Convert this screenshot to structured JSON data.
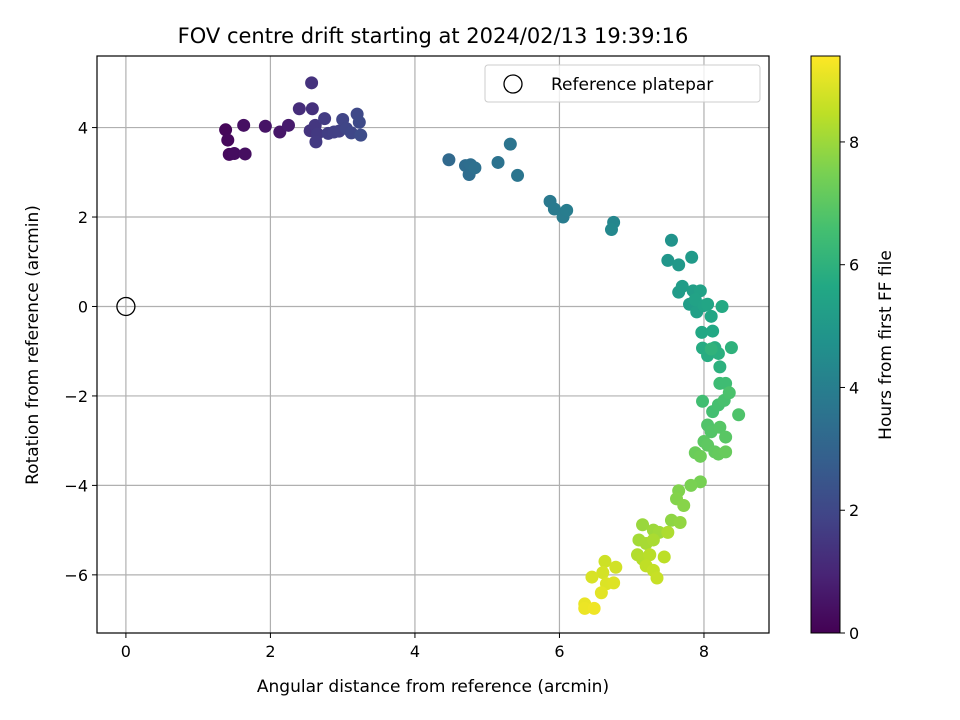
{
  "chart_data": {
    "type": "scatter",
    "title": "FOV centre drift starting at 2024/02/13 19:39:16",
    "xlabel": "Angular distance from reference (arcmin)",
    "ylabel": "Rotation from reference (arcmin)",
    "colorbar_label": "Hours from first FF file",
    "xlim": [
      -0.4,
      8.9
    ],
    "ylim": [
      -7.3,
      5.6
    ],
    "clim": [
      0,
      9.4
    ],
    "colormap": "viridis",
    "x_ticks": [
      0,
      2,
      4,
      6,
      8
    ],
    "y_ticks": [
      -6,
      -4,
      -2,
      0,
      2,
      4
    ],
    "colorbar_ticks": [
      0,
      2,
      4,
      6,
      8
    ],
    "grid": true,
    "legend": {
      "label": "Reference platepar",
      "position": "top-right"
    },
    "reference": {
      "x": 0,
      "y": 0
    },
    "points": [
      {
        "x": 1.38,
        "y": 3.95,
        "t": 0.15
      },
      {
        "x": 1.41,
        "y": 3.72,
        "t": 0.2
      },
      {
        "x": 1.43,
        "y": 3.4,
        "t": 0.25
      },
      {
        "x": 1.5,
        "y": 3.42,
        "t": 0.3
      },
      {
        "x": 1.65,
        "y": 3.41,
        "t": 0.35
      },
      {
        "x": 1.63,
        "y": 4.05,
        "t": 0.4
      },
      {
        "x": 1.93,
        "y": 4.03,
        "t": 0.5
      },
      {
        "x": 2.13,
        "y": 3.9,
        "t": 0.6
      },
      {
        "x": 2.25,
        "y": 4.05,
        "t": 0.7
      },
      {
        "x": 2.4,
        "y": 4.42,
        "t": 1.2
      },
      {
        "x": 2.58,
        "y": 4.42,
        "t": 1.3
      },
      {
        "x": 2.57,
        "y": 5.0,
        "t": 1.35
      },
      {
        "x": 2.55,
        "y": 3.93,
        "t": 1.4
      },
      {
        "x": 2.62,
        "y": 4.05,
        "t": 1.5
      },
      {
        "x": 2.65,
        "y": 3.86,
        "t": 1.55
      },
      {
        "x": 2.63,
        "y": 3.68,
        "t": 1.6
      },
      {
        "x": 2.75,
        "y": 4.2,
        "t": 1.65
      },
      {
        "x": 2.8,
        "y": 3.87,
        "t": 1.7
      },
      {
        "x": 2.88,
        "y": 3.9,
        "t": 1.75
      },
      {
        "x": 2.95,
        "y": 3.92,
        "t": 1.8
      },
      {
        "x": 3.0,
        "y": 4.18,
        "t": 1.9
      },
      {
        "x": 3.05,
        "y": 3.98,
        "t": 1.95
      },
      {
        "x": 3.12,
        "y": 3.88,
        "t": 2.0
      },
      {
        "x": 3.2,
        "y": 4.3,
        "t": 2.05
      },
      {
        "x": 3.23,
        "y": 4.12,
        "t": 2.1
      },
      {
        "x": 3.25,
        "y": 3.83,
        "t": 2.15
      },
      {
        "x": 4.47,
        "y": 3.28,
        "t": 3.2
      },
      {
        "x": 4.7,
        "y": 3.15,
        "t": 3.3
      },
      {
        "x": 4.75,
        "y": 2.95,
        "t": 3.35
      },
      {
        "x": 4.77,
        "y": 3.17,
        "t": 3.4
      },
      {
        "x": 4.83,
        "y": 3.1,
        "t": 3.45
      },
      {
        "x": 5.15,
        "y": 3.22,
        "t": 3.55
      },
      {
        "x": 5.32,
        "y": 3.63,
        "t": 3.6
      },
      {
        "x": 5.42,
        "y": 2.93,
        "t": 3.65
      },
      {
        "x": 5.87,
        "y": 2.35,
        "t": 3.8
      },
      {
        "x": 5.93,
        "y": 2.18,
        "t": 3.85
      },
      {
        "x": 6.05,
        "y": 2.0,
        "t": 3.9
      },
      {
        "x": 6.1,
        "y": 2.15,
        "t": 3.95
      },
      {
        "x": 6.75,
        "y": 1.88,
        "t": 4.3
      },
      {
        "x": 6.72,
        "y": 1.72,
        "t": 4.35
      },
      {
        "x": 7.55,
        "y": 1.48,
        "t": 4.8
      },
      {
        "x": 7.5,
        "y": 1.03,
        "t": 4.9
      },
      {
        "x": 7.65,
        "y": 0.93,
        "t": 5.0
      },
      {
        "x": 7.83,
        "y": 1.1,
        "t": 5.05
      },
      {
        "x": 7.65,
        "y": 0.32,
        "t": 5.1
      },
      {
        "x": 7.7,
        "y": 0.45,
        "t": 5.15
      },
      {
        "x": 7.8,
        "y": 0.05,
        "t": 5.2
      },
      {
        "x": 7.85,
        "y": 0.35,
        "t": 5.25
      },
      {
        "x": 7.9,
        "y": -0.12,
        "t": 5.3
      },
      {
        "x": 7.95,
        "y": 0.35,
        "t": 5.35
      },
      {
        "x": 7.88,
        "y": 0.15,
        "t": 5.4
      },
      {
        "x": 8.0,
        "y": 0.02,
        "t": 5.45
      },
      {
        "x": 8.05,
        "y": 0.05,
        "t": 5.5
      },
      {
        "x": 8.1,
        "y": -0.22,
        "t": 5.55
      },
      {
        "x": 7.97,
        "y": -0.58,
        "t": 5.6
      },
      {
        "x": 8.12,
        "y": -0.55,
        "t": 5.65
      },
      {
        "x": 8.25,
        "y": 0.0,
        "t": 5.7
      },
      {
        "x": 7.98,
        "y": -0.93,
        "t": 5.75
      },
      {
        "x": 8.05,
        "y": -1.1,
        "t": 5.8
      },
      {
        "x": 8.15,
        "y": -0.92,
        "t": 5.85
      },
      {
        "x": 8.2,
        "y": -1.05,
        "t": 5.9
      },
      {
        "x": 8.22,
        "y": -1.35,
        "t": 5.95
      },
      {
        "x": 8.38,
        "y": -0.92,
        "t": 6.0
      },
      {
        "x": 8.1,
        "y": -0.95,
        "t": 6.05
      },
      {
        "x": 8.22,
        "y": -1.72,
        "t": 6.4
      },
      {
        "x": 8.3,
        "y": -1.72,
        "t": 6.45
      },
      {
        "x": 7.98,
        "y": -2.12,
        "t": 6.5
      },
      {
        "x": 8.12,
        "y": -2.35,
        "t": 6.55
      },
      {
        "x": 8.2,
        "y": -2.2,
        "t": 6.6
      },
      {
        "x": 8.28,
        "y": -2.1,
        "t": 6.65
      },
      {
        "x": 8.35,
        "y": -1.93,
        "t": 6.7
      },
      {
        "x": 8.48,
        "y": -2.42,
        "t": 6.75
      },
      {
        "x": 8.05,
        "y": -2.65,
        "t": 6.8
      },
      {
        "x": 8.1,
        "y": -2.8,
        "t": 6.85
      },
      {
        "x": 8.22,
        "y": -2.7,
        "t": 6.9
      },
      {
        "x": 8.3,
        "y": -2.92,
        "t": 6.95
      },
      {
        "x": 8.0,
        "y": -3.02,
        "t": 7.0
      },
      {
        "x": 8.05,
        "y": -3.1,
        "t": 7.05
      },
      {
        "x": 8.15,
        "y": -3.25,
        "t": 7.1
      },
      {
        "x": 8.2,
        "y": -3.3,
        "t": 7.15
      },
      {
        "x": 8.3,
        "y": -3.25,
        "t": 7.2
      },
      {
        "x": 7.88,
        "y": -3.27,
        "t": 7.25
      },
      {
        "x": 7.95,
        "y": -3.35,
        "t": 7.3
      },
      {
        "x": 7.95,
        "y": -3.92,
        "t": 7.45
      },
      {
        "x": 7.82,
        "y": -4.0,
        "t": 7.5
      },
      {
        "x": 7.65,
        "y": -4.12,
        "t": 7.6
      },
      {
        "x": 7.62,
        "y": -4.3,
        "t": 7.65
      },
      {
        "x": 7.72,
        "y": -4.45,
        "t": 7.7
      },
      {
        "x": 7.55,
        "y": -4.78,
        "t": 7.8
      },
      {
        "x": 7.67,
        "y": -4.83,
        "t": 7.85
      },
      {
        "x": 7.15,
        "y": -4.88,
        "t": 7.95
      },
      {
        "x": 7.3,
        "y": -5.0,
        "t": 8.0
      },
      {
        "x": 7.38,
        "y": -5.05,
        "t": 8.05
      },
      {
        "x": 7.1,
        "y": -5.22,
        "t": 8.1
      },
      {
        "x": 7.2,
        "y": -5.3,
        "t": 8.15
      },
      {
        "x": 7.3,
        "y": -5.22,
        "t": 8.2
      },
      {
        "x": 7.5,
        "y": -5.05,
        "t": 8.25
      },
      {
        "x": 7.08,
        "y": -5.55,
        "t": 8.3
      },
      {
        "x": 7.15,
        "y": -5.65,
        "t": 8.35
      },
      {
        "x": 7.25,
        "y": -5.55,
        "t": 8.4
      },
      {
        "x": 7.45,
        "y": -5.6,
        "t": 8.45
      },
      {
        "x": 7.2,
        "y": -5.8,
        "t": 8.5
      },
      {
        "x": 7.3,
        "y": -5.9,
        "t": 8.55
      },
      {
        "x": 7.35,
        "y": -6.07,
        "t": 8.6
      },
      {
        "x": 6.63,
        "y": -5.7,
        "t": 8.7
      },
      {
        "x": 6.78,
        "y": -5.83,
        "t": 8.75
      },
      {
        "x": 6.6,
        "y": -5.95,
        "t": 8.8
      },
      {
        "x": 6.45,
        "y": -6.05,
        "t": 8.85
      },
      {
        "x": 6.65,
        "y": -6.2,
        "t": 8.9
      },
      {
        "x": 6.75,
        "y": -6.18,
        "t": 8.95
      },
      {
        "x": 6.58,
        "y": -6.4,
        "t": 9.0
      },
      {
        "x": 6.35,
        "y": -6.65,
        "t": 9.1
      },
      {
        "x": 6.35,
        "y": -6.75,
        "t": 9.15
      },
      {
        "x": 6.48,
        "y": -6.75,
        "t": 9.2
      }
    ]
  }
}
